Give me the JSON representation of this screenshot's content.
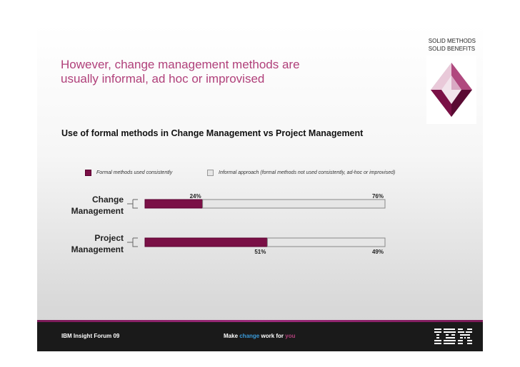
{
  "tagline": [
    "SOLID METHODS",
    "SOLID BENEFITS"
  ],
  "title": [
    "However, change management methods are",
    "usually informal, ad hoc or improvised"
  ],
  "footer": {
    "left": "IBM Insight Forum 09",
    "mid_prefix": "Make ",
    "mid_change": "change",
    "mid_work": " work for ",
    "mid_you": "you",
    "logo_text": "IBM"
  },
  "colors": {
    "formal": "#7a1046",
    "informal": "#e6e6e6",
    "title": "#b0407a"
  },
  "icons": [
    "diamond-logo",
    "ibm-logo"
  ],
  "chart_data": {
    "type": "bar",
    "orientation": "horizontal",
    "stacked": true,
    "title": "Use of formal methods in Change Management vs Project Management",
    "categories": [
      "Change Management",
      "Project Management"
    ],
    "series": [
      {
        "name": "Formal methods used consistently",
        "values": [
          24,
          51
        ],
        "color": "#7a1046"
      },
      {
        "name": "Informal approach (formal methods not used consistently, ad-hoc or improvised)",
        "values": [
          76,
          49
        ],
        "color": "#e6e6e6"
      }
    ],
    "data_labels": [
      [
        "24%",
        "51%"
      ],
      [
        "76%",
        "49%"
      ]
    ],
    "unit": "%",
    "xlim": [
      0,
      100
    ],
    "legend_position": "top",
    "grid": false
  }
}
